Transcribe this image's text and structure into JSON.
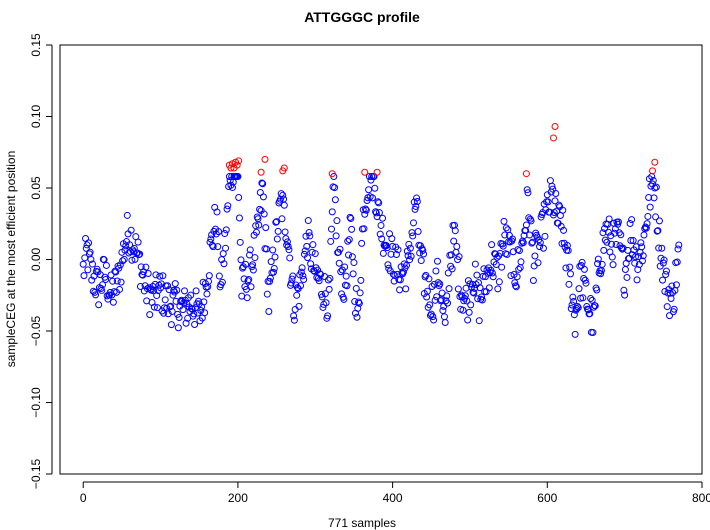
{
  "chart_data": {
    "type": "scatter",
    "title": "ATTGGGC profile",
    "xlabel": "771 samples",
    "ylabel": "sampleCEG at the most efficient position",
    "xlim": [
      -30,
      800
    ],
    "ylim": [
      -0.15,
      0.15
    ],
    "x_ticks": [
      0,
      200,
      400,
      600,
      800
    ],
    "x_tick_labels": [
      "0",
      "200",
      "400",
      "600",
      "800"
    ],
    "y_ticks": [
      -0.15,
      -0.1,
      -0.05,
      0.0,
      0.05,
      0.1,
      0.15
    ],
    "y_tick_labels": [
      "−0.15",
      "−0.10",
      "−0.05",
      "0.00",
      "0.05",
      "0.10",
      "0.15"
    ],
    "grid": false,
    "marker": "open-circle",
    "colors": {
      "normal": "#0000ff",
      "highlight": "#ff0000"
    },
    "threshold": 0.06,
    "n_samples": 771,
    "anchors": [
      [
        0,
        -0.008
      ],
      [
        5,
        0.005
      ],
      [
        12,
        -0.012
      ],
      [
        20,
        -0.02
      ],
      [
        28,
        -0.01
      ],
      [
        36,
        -0.025
      ],
      [
        45,
        -0.015
      ],
      [
        52,
        0.005
      ],
      [
        58,
        0.02
      ],
      [
        65,
        0.012
      ],
      [
        72,
        0.0
      ],
      [
        80,
        -0.018
      ],
      [
        90,
        -0.028
      ],
      [
        100,
        -0.022
      ],
      [
        110,
        -0.03
      ],
      [
        120,
        -0.032
      ],
      [
        130,
        -0.035
      ],
      [
        140,
        -0.03
      ],
      [
        150,
        -0.04
      ],
      [
        158,
        -0.02
      ],
      [
        165,
        0.008
      ],
      [
        172,
        0.03
      ],
      [
        178,
        -0.02
      ],
      [
        185,
        0.02
      ],
      [
        190,
        0.062
      ],
      [
        195,
        0.066
      ],
      [
        200,
        0.065
      ],
      [
        205,
        -0.02
      ],
      [
        215,
        -0.01
      ],
      [
        225,
        0.015
      ],
      [
        232,
        0.05
      ],
      [
        240,
        -0.03
      ],
      [
        248,
        0.01
      ],
      [
        256,
        0.04
      ],
      [
        264,
        0.02
      ],
      [
        272,
        -0.03
      ],
      [
        280,
        -0.02
      ],
      [
        290,
        0.015
      ],
      [
        300,
        -0.01
      ],
      [
        310,
        -0.02
      ],
      [
        318,
        -0.03
      ],
      [
        324,
        0.055
      ],
      [
        330,
        0.0
      ],
      [
        338,
        -0.02
      ],
      [
        346,
        0.02
      ],
      [
        355,
        -0.045
      ],
      [
        362,
        0.03
      ],
      [
        368,
        0.055
      ],
      [
        376,
        0.057
      ],
      [
        382,
        0.03
      ],
      [
        390,
        0.015
      ],
      [
        400,
        0.0
      ],
      [
        410,
        -0.01
      ],
      [
        420,
        -0.005
      ],
      [
        430,
        0.04
      ],
      [
        436,
        0.0
      ],
      [
        444,
        -0.02
      ],
      [
        452,
        -0.03
      ],
      [
        460,
        -0.01
      ],
      [
        468,
        -0.05
      ],
      [
        474,
        0.0
      ],
      [
        480,
        0.015
      ],
      [
        488,
        -0.02
      ],
      [
        496,
        -0.03
      ],
      [
        504,
        -0.01
      ],
      [
        512,
        -0.03
      ],
      [
        520,
        -0.015
      ],
      [
        528,
        0.0
      ],
      [
        536,
        -0.01
      ],
      [
        544,
        0.015
      ],
      [
        552,
        0.005
      ],
      [
        560,
        -0.01
      ],
      [
        568,
        0.01
      ],
      [
        575,
        0.04
      ],
      [
        582,
        0.0
      ],
      [
        590,
        0.01
      ],
      [
        598,
        0.03
      ],
      [
        606,
        0.045
      ],
      [
        612,
        0.03
      ],
      [
        620,
        0.02
      ],
      [
        628,
        -0.01
      ],
      [
        636,
        -0.04
      ],
      [
        644,
        -0.01
      ],
      [
        652,
        -0.03
      ],
      [
        660,
        -0.045
      ],
      [
        668,
        0.0
      ],
      [
        676,
        0.02
      ],
      [
        684,
        0.01
      ],
      [
        692,
        0.015
      ],
      [
        700,
        -0.01
      ],
      [
        708,
        0.02
      ],
      [
        716,
        0.0
      ],
      [
        724,
        0.01
      ],
      [
        732,
        0.045
      ],
      [
        738,
        0.055
      ],
      [
        746,
        0.01
      ],
      [
        754,
        -0.02
      ],
      [
        762,
        -0.03
      ],
      [
        770,
        0.005
      ]
    ],
    "highlight_points": [
      [
        189,
        0.066
      ],
      [
        191,
        0.064
      ],
      [
        193,
        0.067
      ],
      [
        195,
        0.064
      ],
      [
        197,
        0.068
      ],
      [
        199,
        0.066
      ],
      [
        201,
        0.069
      ],
      [
        230,
        0.061
      ],
      [
        235,
        0.07
      ],
      [
        258,
        0.062
      ],
      [
        260,
        0.064
      ],
      [
        322,
        0.06
      ],
      [
        364,
        0.061
      ],
      [
        380,
        0.061
      ],
      [
        573,
        0.06
      ],
      [
        608,
        0.085
      ],
      [
        610,
        0.093
      ],
      [
        736,
        0.062
      ],
      [
        739,
        0.068
      ]
    ]
  }
}
